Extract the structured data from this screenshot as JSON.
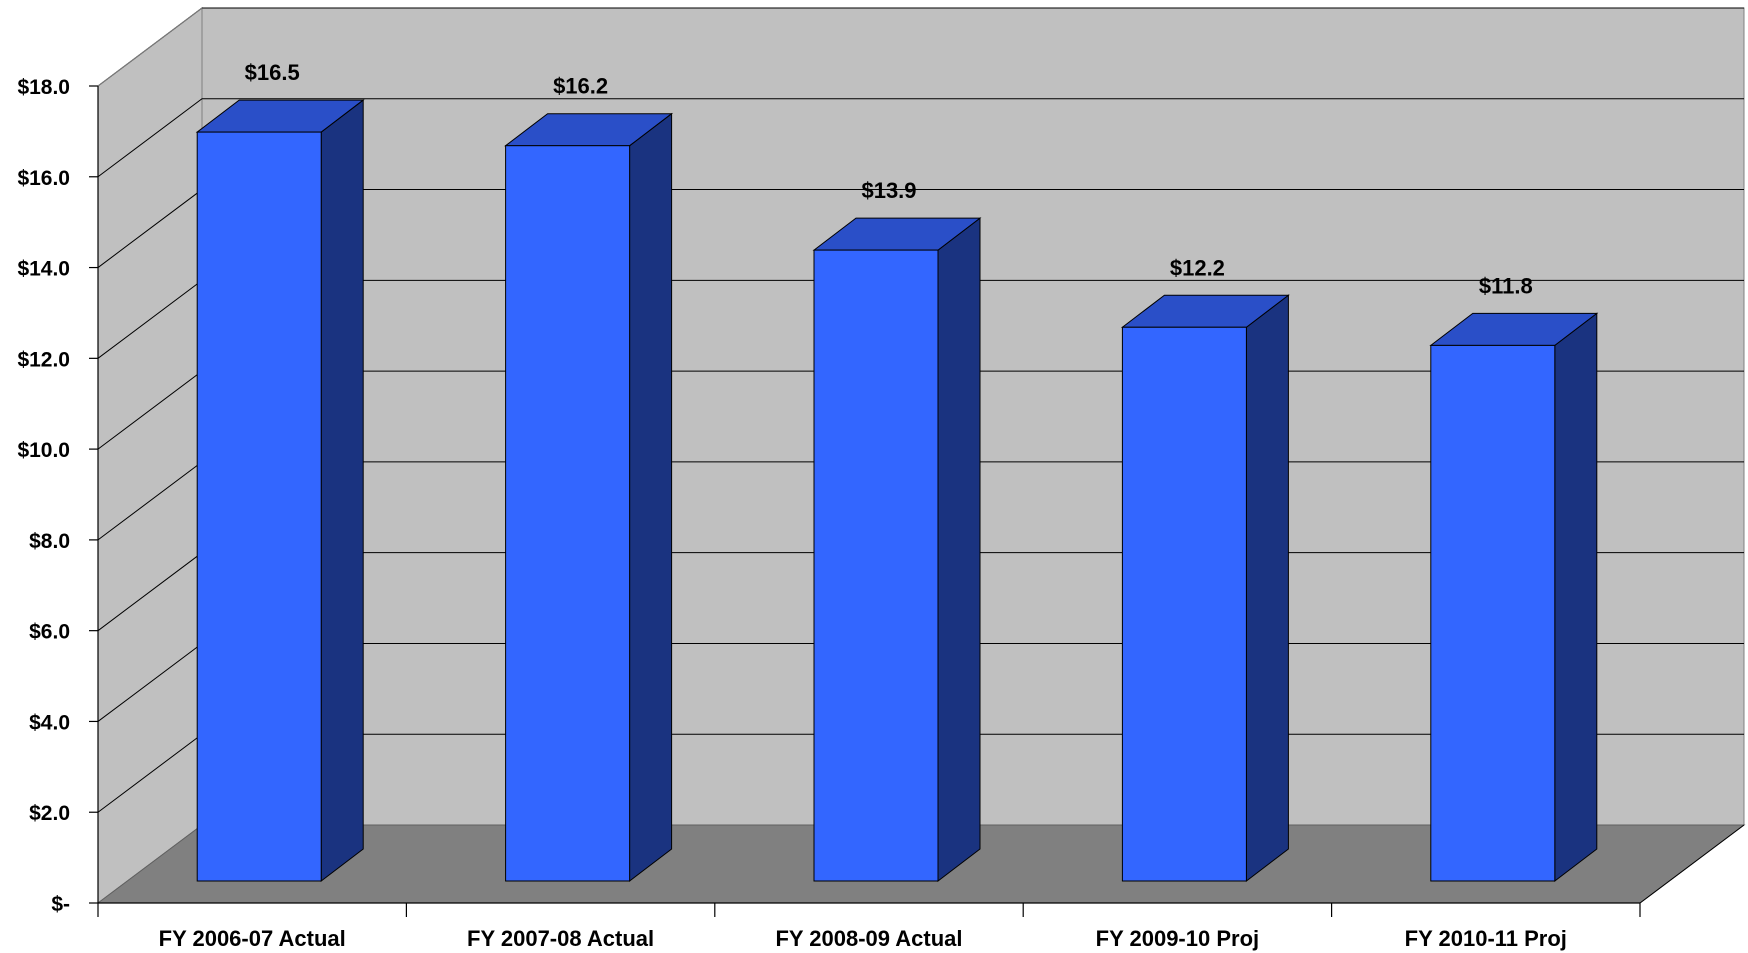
{
  "chart_data": {
    "type": "bar",
    "style": "3d-column",
    "categories": [
      "FY 2006-07 Actual",
      "FY 2007-08 Actual",
      "FY 2008-09 Actual",
      "FY 2009-10 Proj",
      "FY 2010-11 Proj"
    ],
    "values": [
      16.5,
      16.2,
      13.9,
      12.2,
      11.8
    ],
    "data_labels": [
      "$16.5",
      "$16.2",
      "$13.9",
      "$12.2",
      "$11.8"
    ],
    "y_ticks": [
      0,
      2,
      4,
      6,
      8,
      10,
      12,
      14,
      16,
      18
    ],
    "y_tick_labels": [
      "$-",
      "$2.0",
      "$4.0",
      "$6.0",
      "$8.0",
      "$10.0",
      "$12.0",
      "$14.0",
      "$16.0",
      "$18.0"
    ],
    "ylim": [
      0,
      18
    ],
    "title": "",
    "xlabel": "",
    "ylabel": "",
    "grid": true,
    "legend": "none",
    "colors": {
      "bar_front": "#3366ff",
      "bar_top": "#2a4fc8",
      "bar_side": "#1a3380",
      "back_wall": "#c0c0c0",
      "side_wall": "#c0c0c0",
      "floor": "#808080",
      "gridline": "#000000"
    }
  }
}
